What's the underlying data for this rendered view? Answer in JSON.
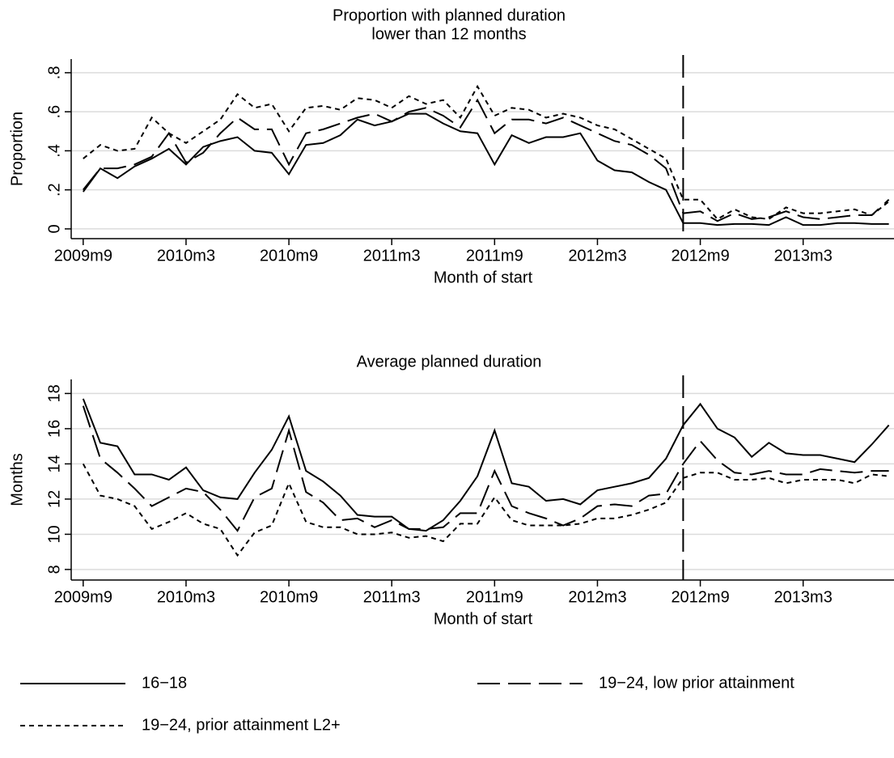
{
  "chart_data": [
    {
      "type": "line",
      "title": [
        "Proportion with planned duration",
        "lower than 12 months"
      ],
      "x_label": "Month of start",
      "y_label": "Proportion",
      "x": [
        596,
        597,
        598,
        599,
        600,
        601,
        602,
        603,
        604,
        605,
        606,
        607,
        608,
        609,
        610,
        611,
        612,
        613,
        614,
        615,
        616,
        617,
        618,
        619,
        620,
        621,
        622,
        623,
        624,
        625,
        626,
        627,
        628,
        629,
        630,
        631,
        632,
        633,
        634,
        635,
        636,
        637,
        638,
        639,
        640,
        641,
        642,
        643
      ],
      "xlim": [
        595.3,
        643.3
      ],
      "xticks": [
        {
          "value": 596,
          "label": "2009m9"
        },
        {
          "value": 602,
          "label": "2010m3"
        },
        {
          "value": 608,
          "label": "2010m9"
        },
        {
          "value": 614,
          "label": "2011m3"
        },
        {
          "value": 620,
          "label": "2011m9"
        },
        {
          "value": 626,
          "label": "2012m3"
        },
        {
          "value": 632,
          "label": "2012m9"
        },
        {
          "value": 638,
          "label": "2013m3"
        }
      ],
      "ylim": [
        -0.05,
        0.87
      ],
      "yticks": [
        0,
        {
          "value": 0.2,
          "label": ".2"
        },
        {
          "value": 0.4,
          "label": ".4"
        },
        {
          "value": 0.6,
          "label": ".6"
        },
        {
          "value": 0.8,
          "label": ".8"
        }
      ],
      "grid": true,
      "vline": 631,
      "series": [
        {
          "color": "#000000",
          "dash": "solid",
          "values": [
            0.19,
            0.31,
            0.26,
            0.32,
            0.36,
            0.41,
            0.33,
            0.42,
            0.45,
            0.47,
            0.4,
            0.39,
            0.28,
            0.43,
            0.44,
            0.48,
            0.56,
            0.53,
            0.55,
            0.59,
            0.59,
            0.54,
            0.5,
            0.49,
            0.33,
            0.48,
            0.44,
            0.47,
            0.47,
            0.49,
            0.35,
            0.3,
            0.29,
            0.24,
            0.2,
            0.03,
            0.03,
            0.02,
            0.025,
            0.025,
            0.02,
            0.06,
            0.02,
            0.02,
            0.03,
            0.03,
            0.025,
            0.025
          ]
        },
        {
          "color": "#000000",
          "dash": "long",
          "values": [
            0.2,
            0.31,
            0.31,
            0.33,
            0.37,
            0.49,
            0.34,
            0.39,
            0.49,
            0.57,
            0.51,
            0.51,
            0.33,
            0.49,
            0.51,
            0.54,
            0.57,
            0.59,
            0.55,
            0.6,
            0.62,
            0.58,
            0.52,
            0.66,
            0.49,
            0.56,
            0.56,
            0.54,
            0.57,
            0.53,
            0.49,
            0.45,
            0.43,
            0.38,
            0.31,
            0.08,
            0.09,
            0.04,
            0.08,
            0.05,
            0.06,
            0.09,
            0.06,
            0.05,
            0.06,
            0.07,
            0.07,
            0.15
          ]
        },
        {
          "color": "#000000",
          "dash": "short",
          "values": [
            0.36,
            0.43,
            0.4,
            0.41,
            0.57,
            0.49,
            0.44,
            0.5,
            0.56,
            0.69,
            0.62,
            0.64,
            0.5,
            0.62,
            0.63,
            0.61,
            0.67,
            0.66,
            0.62,
            0.68,
            0.64,
            0.66,
            0.57,
            0.73,
            0.58,
            0.62,
            0.61,
            0.57,
            0.59,
            0.57,
            0.53,
            0.51,
            0.46,
            0.41,
            0.36,
            0.15,
            0.15,
            0.05,
            0.1,
            0.06,
            0.05,
            0.11,
            0.08,
            0.08,
            0.09,
            0.1,
            0.07,
            0.14
          ]
        }
      ]
    },
    {
      "type": "line",
      "title": [
        "Average planned duration"
      ],
      "x_label": "Month of start",
      "y_label": "Months",
      "x": [
        596,
        597,
        598,
        599,
        600,
        601,
        602,
        603,
        604,
        605,
        606,
        607,
        608,
        609,
        610,
        611,
        612,
        613,
        614,
        615,
        616,
        617,
        618,
        619,
        620,
        621,
        622,
        623,
        624,
        625,
        626,
        627,
        628,
        629,
        630,
        631,
        632,
        633,
        634,
        635,
        636,
        637,
        638,
        639,
        640,
        641,
        642,
        643
      ],
      "xlim": [
        595.3,
        643.3
      ],
      "xticks": [
        {
          "value": 596,
          "label": "2009m9"
        },
        {
          "value": 602,
          "label": "2010m3"
        },
        {
          "value": 608,
          "label": "2010m9"
        },
        {
          "value": 614,
          "label": "2011m3"
        },
        {
          "value": 620,
          "label": "2011m9"
        },
        {
          "value": 626,
          "label": "2012m3"
        },
        {
          "value": 632,
          "label": "2012m9"
        },
        {
          "value": 638,
          "label": "2013m3"
        }
      ],
      "ylim": [
        7.4,
        18.8
      ],
      "yticks": [
        8,
        10,
        12,
        14,
        16,
        18
      ],
      "grid": true,
      "vline": 631,
      "series": [
        {
          "name": "16−18",
          "color": "#000000",
          "dash": "solid",
          "values": [
            17.7,
            15.2,
            15.0,
            13.4,
            13.4,
            13.1,
            13.8,
            12.5,
            12.1,
            12.0,
            13.5,
            14.8,
            16.7,
            13.6,
            13.0,
            12.2,
            11.1,
            11.0,
            11.0,
            10.3,
            10.2,
            10.8,
            11.9,
            13.3,
            15.9,
            12.9,
            12.7,
            11.9,
            12.0,
            11.7,
            12.5,
            12.7,
            12.9,
            13.2,
            14.3,
            16.2,
            17.4,
            16.0,
            15.5,
            14.4,
            15.2,
            14.6,
            14.5,
            14.5,
            14.3,
            14.1,
            15.1,
            16.2
          ]
        },
        {
          "name": "19−24, low prior attainment",
          "color": "#000000",
          "dash": "long",
          "values": [
            17.3,
            14.3,
            13.5,
            12.6,
            11.6,
            12.1,
            12.6,
            12.4,
            11.4,
            10.2,
            12.1,
            12.6,
            15.9,
            12.4,
            11.8,
            10.8,
            10.9,
            10.4,
            10.8,
            10.3,
            10.3,
            10.4,
            11.2,
            11.2,
            13.6,
            11.6,
            11.2,
            10.9,
            10.5,
            10.9,
            11.6,
            11.7,
            11.6,
            12.2,
            12.3,
            14.0,
            15.3,
            14.2,
            13.5,
            13.4,
            13.6,
            13.4,
            13.4,
            13.7,
            13.6,
            13.5,
            13.6,
            13.6
          ]
        },
        {
          "name": "19−24, prior attainment L2+",
          "color": "#000000",
          "dash": "short",
          "values": [
            14.0,
            12.2,
            12.0,
            11.6,
            10.3,
            10.7,
            11.2,
            10.6,
            10.3,
            8.8,
            10.1,
            10.5,
            12.9,
            10.7,
            10.4,
            10.4,
            10.0,
            10.0,
            10.1,
            9.8,
            9.9,
            9.6,
            10.6,
            10.6,
            12.1,
            10.8,
            10.5,
            10.5,
            10.5,
            10.6,
            10.9,
            10.9,
            11.1,
            11.4,
            11.8,
            13.2,
            13.5,
            13.5,
            13.1,
            13.1,
            13.2,
            12.9,
            13.1,
            13.1,
            13.1,
            12.9,
            13.4,
            13.3
          ]
        }
      ]
    }
  ]
}
